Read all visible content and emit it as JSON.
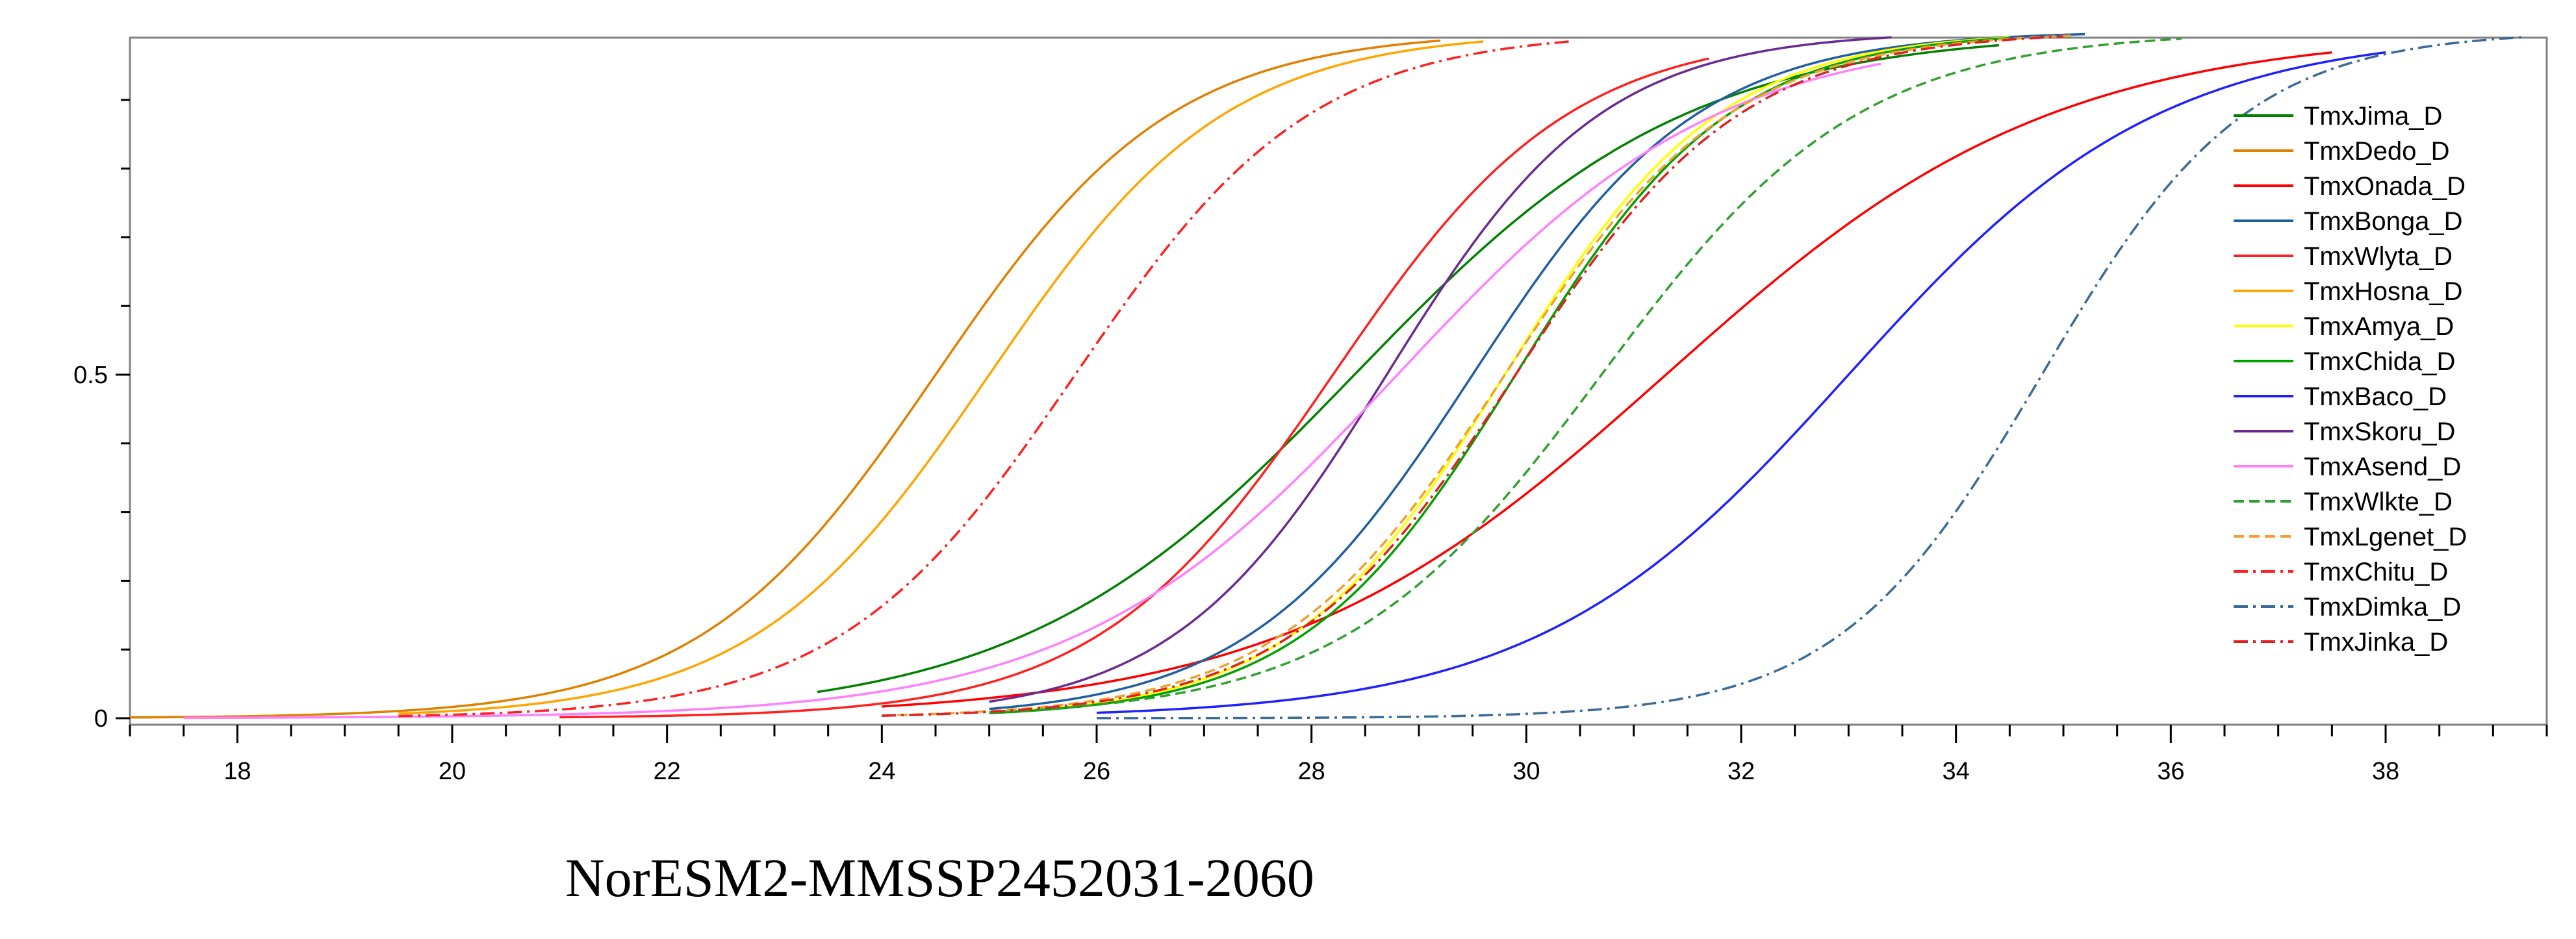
{
  "chart_data": {
    "type": "line",
    "caption": "NorESM2-MMSSP2452031-2060",
    "xlabel": "",
    "ylabel": "",
    "xlim": [
      17,
      39.5
    ],
    "ylim": [
      0,
      1
    ],
    "x_ticks": [
      18,
      20,
      22,
      24,
      26,
      28,
      30,
      32,
      34,
      36,
      38
    ],
    "y_ticks": [
      0,
      0.5
    ],
    "grid": false,
    "legend_position": "top-right",
    "series": [
      {
        "name": "TmxJima_D",
        "color": "#008000",
        "dash": "solid",
        "x_start": 23.4,
        "x_end": 34.4,
        "mu": 28.4,
        "s": 1.55
      },
      {
        "name": "TmxDedo_D",
        "color": "#e08000",
        "dash": "solid",
        "x_start": 17.0,
        "x_end": 29.2,
        "mu": 24.5,
        "s": 1.1
      },
      {
        "name": "TmxOnada_D",
        "color": "#ff0000",
        "dash": "solid",
        "x_start": 24.0,
        "x_end": 37.5,
        "mu": 31.3,
        "s": 1.8
      },
      {
        "name": "TmxBonga_D",
        "color": "#1f5fa0",
        "dash": "solid",
        "x_start": 25.0,
        "x_end": 35.2,
        "mu": 29.5,
        "s": 1.05
      },
      {
        "name": "TmxWlyta_D",
        "color": "#ff2020",
        "dash": "solid",
        "x_start": 21.0,
        "x_end": 31.7,
        "mu": 28.2,
        "s": 1.1
      },
      {
        "name": "TmxHosna_D",
        "color": "#ffa500",
        "dash": "solid",
        "x_start": 19.5,
        "x_end": 29.6,
        "mu": 25.0,
        "s": 1.1
      },
      {
        "name": "TmxAmya_D",
        "color": "#ffff00",
        "dash": "solid",
        "x_start": 25.0,
        "x_end": 34.5,
        "mu": 29.8,
        "s": 1.0
      },
      {
        "name": "TmxChida_D",
        "color": "#00a000",
        "dash": "solid",
        "x_start": 25.0,
        "x_end": 34.5,
        "mu": 29.9,
        "s": 1.0
      },
      {
        "name": "TmxBaco_D",
        "color": "#2020ff",
        "dash": "solid",
        "x_start": 26.0,
        "x_end": 38.0,
        "mu": 33.0,
        "s": 1.45
      },
      {
        "name": "TmxSkoru_D",
        "color": "#6a2a90",
        "dash": "solid",
        "x_start": 25.0,
        "x_end": 33.4,
        "mu": 28.7,
        "s": 1.0
      },
      {
        "name": "TmxAsend_D",
        "color": "#ff80ff",
        "dash": "solid",
        "x_start": 17.5,
        "x_end": 33.3,
        "mu": 28.8,
        "s": 1.5
      },
      {
        "name": "TmxWlkte_D",
        "color": "#30a030",
        "dash": "dashed",
        "x_start": 25.0,
        "x_end": 36.1,
        "mu": 30.7,
        "s": 1.2
      },
      {
        "name": "TmxLgenet_D",
        "color": "#f0a030",
        "dash": "dashed",
        "x_start": 24.0,
        "x_end": 35.1,
        "mu": 29.8,
        "s": 1.05
      },
      {
        "name": "TmxChitu_D",
        "color": "#ff2020",
        "dash": "dashdot",
        "x_start": 19.5,
        "x_end": 30.4,
        "mu": 25.8,
        "s": 1.1
      },
      {
        "name": "TmxDimka_D",
        "color": "#3a6a96",
        "dash": "dashdot",
        "x_start": 26.0,
        "x_end": 39.3,
        "mu": 34.8,
        "s": 0.95
      },
      {
        "name": "TmxJinka_D",
        "color": "#e02020",
        "dash": "dashdot",
        "x_start": 24.0,
        "x_end": 35.0,
        "mu": 29.9,
        "s": 1.05
      }
    ]
  }
}
